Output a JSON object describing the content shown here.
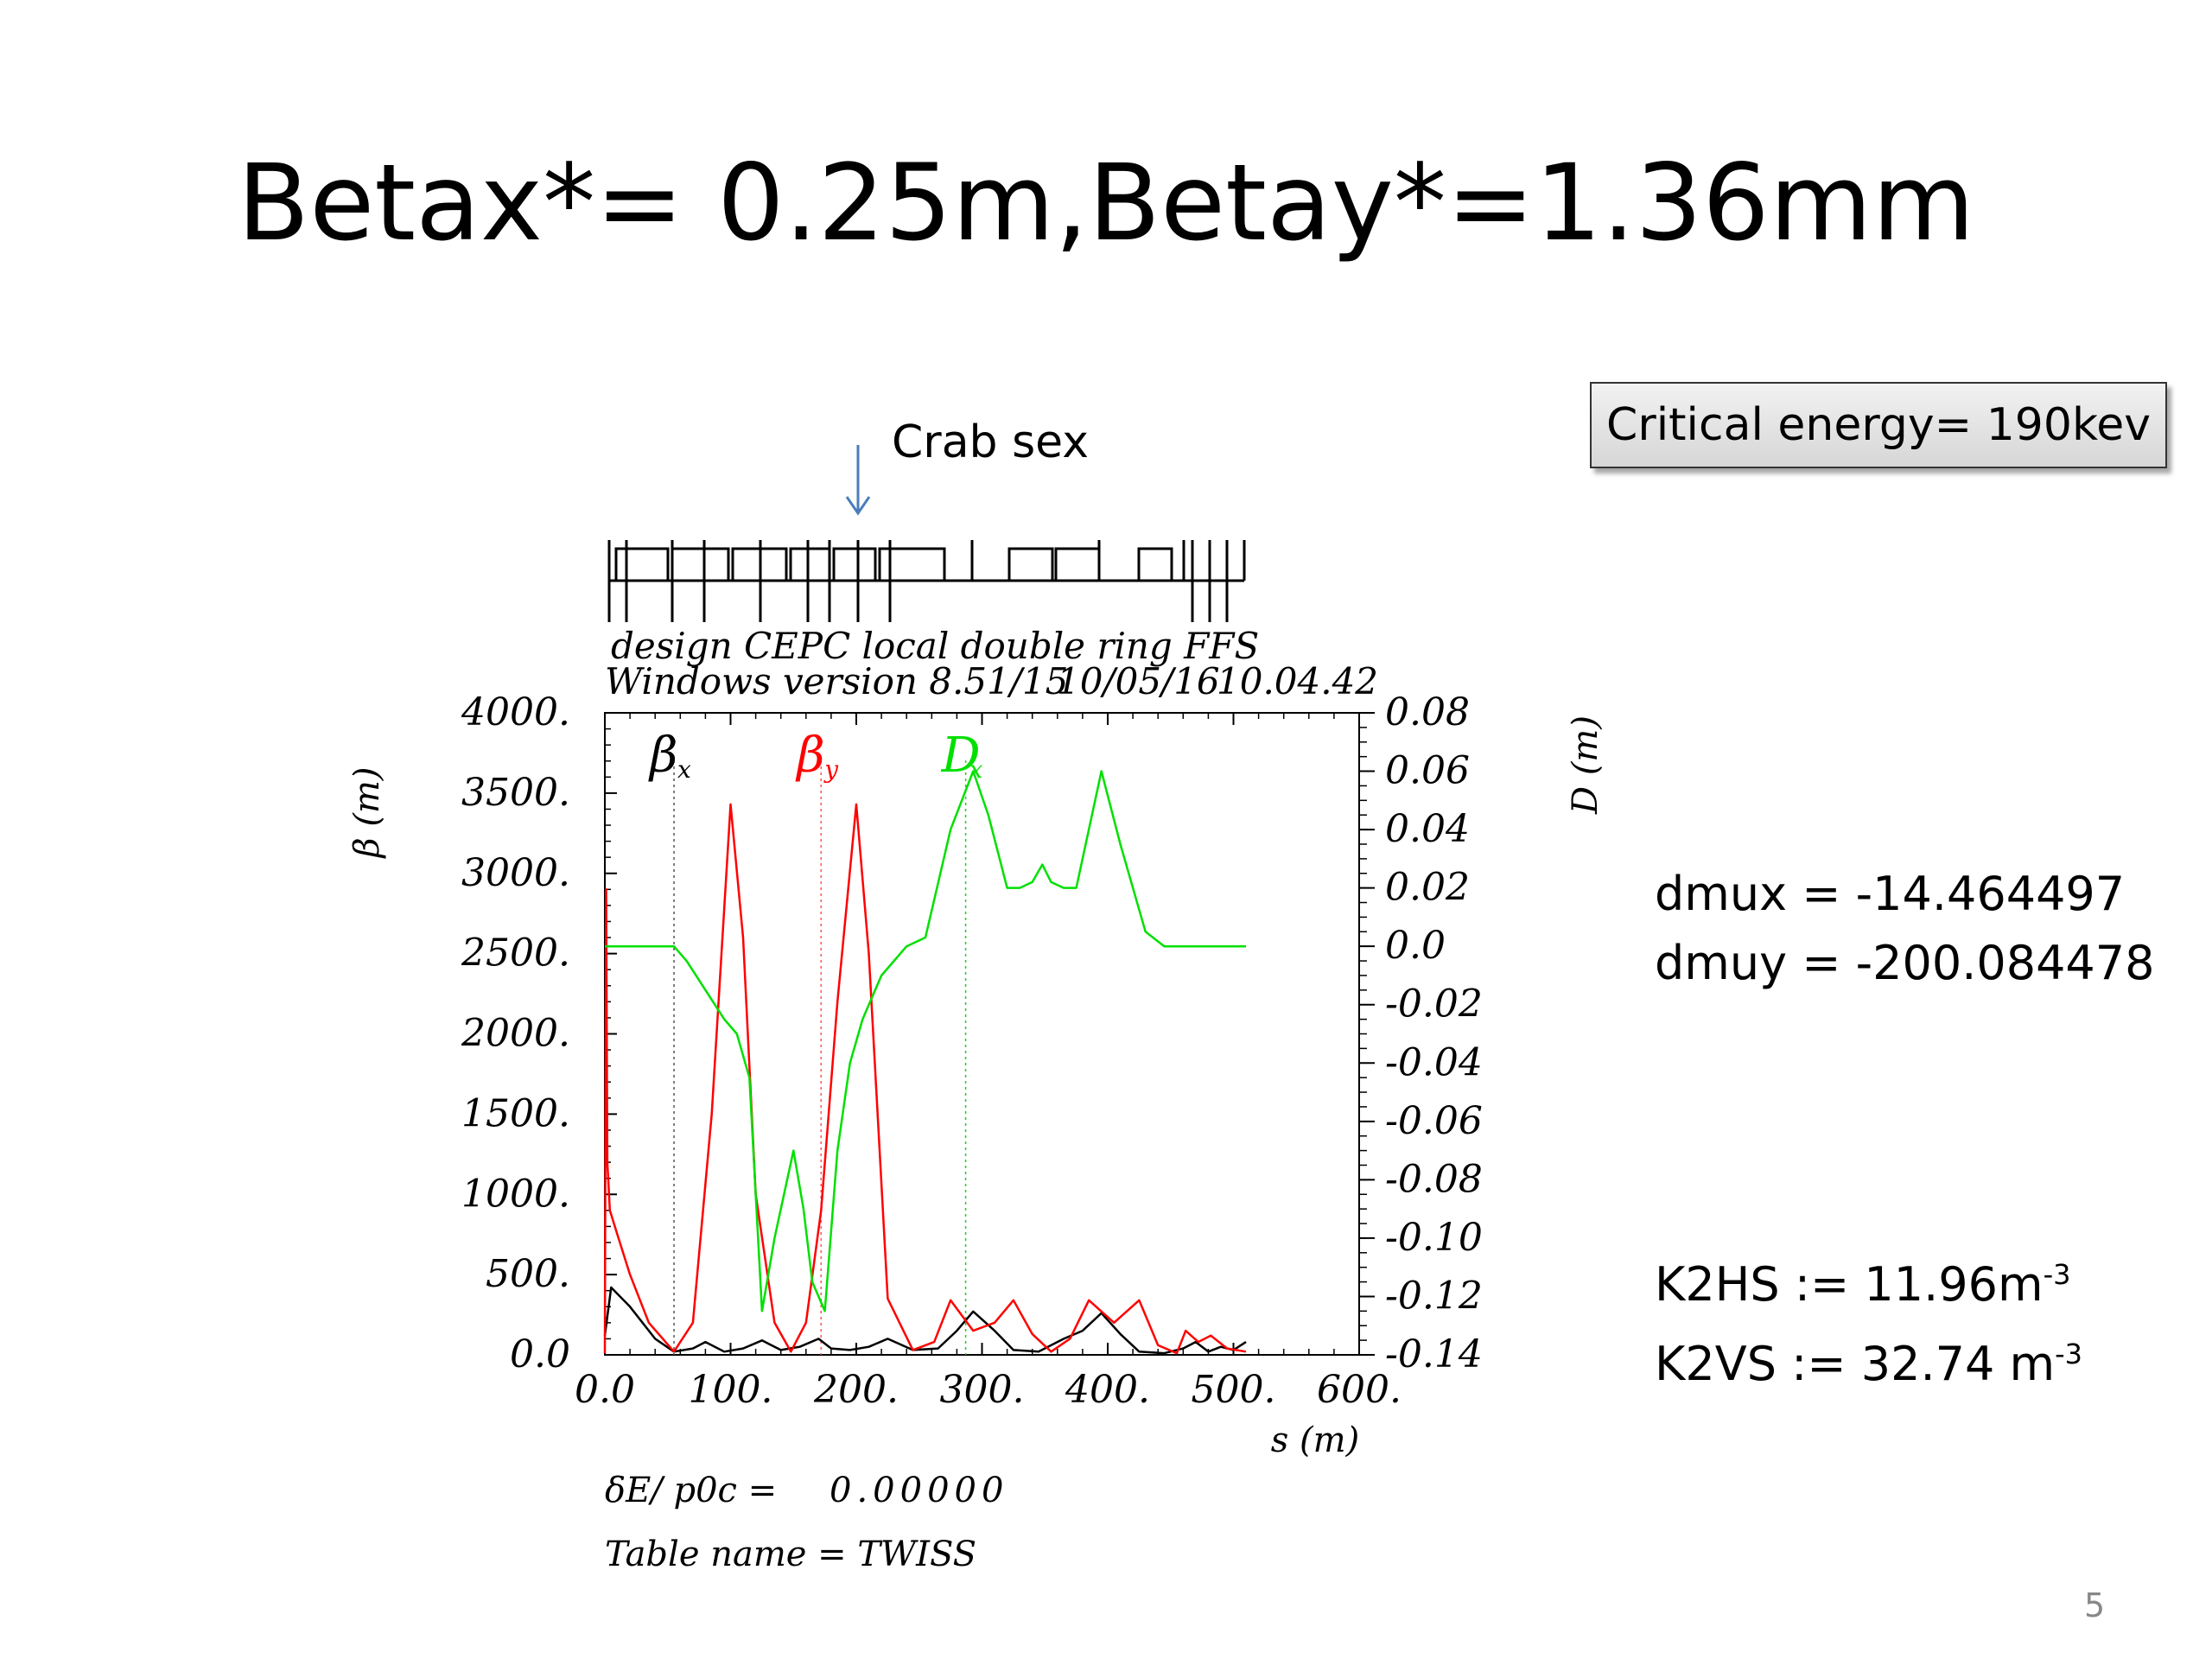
{
  "slide": {
    "title": "Betax*= 0.25m,Betay*=1.36mm",
    "page_number": "5"
  },
  "callout": {
    "critical_energy": "Critical energy= 190kev"
  },
  "annotation": {
    "crab_label": "Crab sex",
    "arrow_color": "#4a7ebb"
  },
  "params": {
    "dmux": "dmux = -14.464497",
    "dmuy": "dmuy = -200.084478",
    "k2hs_text": "K2HS := 11.96m",
    "k2hs_sup": "-3",
    "k2vs_text": "K2VS := 32.74 m",
    "k2vs_sup": "-3"
  },
  "plot_header": {
    "line1": "design CEPC local double ring FFS",
    "line2_version": "Windows version 8.51/15",
    "line2_date": "10/05/16",
    "line2_time": "10.04.42"
  },
  "plot_footer": {
    "delta_label": "δE/ p0c   =",
    "delta_value": "0.00000",
    "table_name": "Table name = TWISS"
  },
  "chart_data": {
    "type": "line",
    "xlabel": "s (m)",
    "ylabel_left": "β (m)",
    "ylabel_right": "D (m)",
    "xlim": [
      0,
      600
    ],
    "ylim_left": [
      0,
      4000
    ],
    "ylim_right": [
      -0.14,
      0.08
    ],
    "x_ticks": [
      "0.0",
      "100.",
      "200.",
      "300.",
      "400.",
      "500.",
      "600."
    ],
    "y_ticks_left": [
      "0.0",
      "500.",
      "1000.",
      "1500.",
      "2000.",
      "2500.",
      "3000.",
      "3500.",
      "4000."
    ],
    "y_ticks_right": [
      "-0.14",
      "-0.12",
      "-0.10",
      "-0.08",
      "-0.06",
      "-0.04",
      "-0.02",
      "0.0",
      "0.02",
      "0.04",
      "0.06",
      "0.08"
    ],
    "legend": [
      {
        "label": "βx",
        "color": "#000000",
        "x": 55
      },
      {
        "label": "βy",
        "color": "#ff0000",
        "x": 172
      },
      {
        "label": "Dx",
        "color": "#00e000",
        "x": 287
      }
    ],
    "series": [
      {
        "name": "βx",
        "axis": "left",
        "color": "#000000",
        "x": [
          0,
          5,
          20,
          40,
          55,
          70,
          80,
          95,
          110,
          125,
          140,
          155,
          170,
          180,
          195,
          210,
          225,
          245,
          265,
          280,
          293,
          310,
          325,
          345,
          365,
          380,
          395,
          410,
          425,
          445,
          460,
          470,
          480,
          490,
          500,
          510
        ],
        "y": [
          120,
          420,
          300,
          100,
          20,
          40,
          80,
          20,
          40,
          90,
          30,
          50,
          100,
          40,
          30,
          50,
          100,
          30,
          40,
          150,
          270,
          150,
          30,
          20,
          100,
          150,
          260,
          130,
          20,
          10,
          40,
          80,
          20,
          50,
          30,
          80
        ]
      },
      {
        "name": "βy",
        "axis": "left",
        "color": "#ff0000",
        "x": [
          0,
          1,
          2,
          4,
          10,
          20,
          35,
          55,
          70,
          85,
          100,
          110,
          120,
          135,
          148,
          160,
          172,
          185,
          200,
          210,
          225,
          245,
          262,
          275,
          293,
          310,
          325,
          340,
          355,
          370,
          385,
          405,
          425,
          440,
          455,
          462,
          472,
          482,
          495,
          510
        ],
        "y": [
          10,
          2900,
          1200,
          900,
          750,
          500,
          200,
          20,
          200,
          1500,
          3430,
          2600,
          1000,
          200,
          20,
          200,
          900,
          2200,
          3430,
          2500,
          350,
          30,
          80,
          340,
          150,
          200,
          340,
          130,
          20,
          100,
          340,
          200,
          340,
          60,
          10,
          150,
          80,
          120,
          40,
          20
        ]
      },
      {
        "name": "Dx",
        "axis": "right",
        "color": "#00e000",
        "x": [
          0,
          55,
          65,
          80,
          95,
          105,
          115,
          125,
          135,
          150,
          158,
          165,
          175,
          185,
          195,
          205,
          220,
          240,
          255,
          275,
          293,
          305,
          320,
          330,
          340,
          348,
          355,
          365,
          375,
          395,
          410,
          430,
          445,
          455,
          470,
          510
        ],
        "y": [
          0.0,
          0.0,
          -0.005,
          -0.015,
          -0.025,
          -0.03,
          -0.045,
          -0.125,
          -0.1,
          -0.07,
          -0.09,
          -0.115,
          -0.125,
          -0.07,
          -0.04,
          -0.025,
          -0.01,
          0.0,
          0.003,
          0.04,
          0.06,
          0.045,
          0.02,
          0.02,
          0.022,
          0.028,
          0.022,
          0.02,
          0.02,
          0.06,
          0.035,
          0.005,
          0.0,
          0.0,
          0.0,
          0.0
        ]
      }
    ],
    "markers": [
      {
        "x": 55,
        "color": "#555555"
      },
      {
        "x": 172,
        "color": "#ff5555"
      },
      {
        "x": 287,
        "color": "#22cc22"
      }
    ]
  }
}
